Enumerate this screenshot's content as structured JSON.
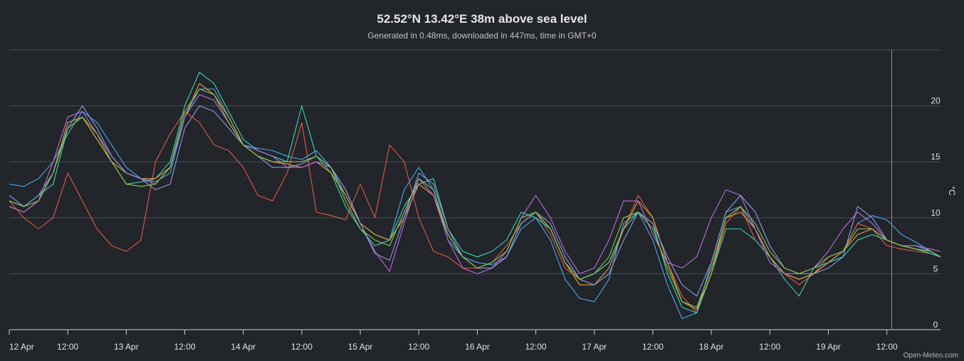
{
  "chart_data": {
    "type": "line",
    "title": "52.52°N 13.42°E 38m above sea level",
    "subtitle": "Generated in 0.48ms, downloaded in 447ms, time in GMT+0",
    "ylabel": "°C",
    "credit": "Open-Meteo.com",
    "ylim": [
      0,
      25
    ],
    "yticks": [
      0,
      5,
      10,
      15,
      20
    ],
    "xlim": [
      0,
      191
    ],
    "x_tick_hours": [
      0,
      12,
      24,
      36,
      48,
      60,
      72,
      84,
      96,
      108,
      120,
      132,
      144,
      156,
      168,
      180
    ],
    "x_tick_labels": [
      "12 Apr",
      "12:00",
      "13 Apr",
      "12:00",
      "14 Apr",
      "12:00",
      "15 Apr",
      "12:00",
      "16 Apr",
      "12:00",
      "17 Apr",
      "12:00",
      "18 Apr",
      "12:00",
      "19 Apr",
      "12:00"
    ],
    "current_time_hour": 181,
    "series": [
      {
        "color": "#4aa8ec",
        "x": [
          0,
          3,
          6,
          9,
          12,
          15,
          18,
          21,
          24,
          27,
          30,
          33,
          36,
          39,
          42,
          45,
          48,
          51,
          54,
          57,
          60,
          63,
          66,
          69,
          72,
          75,
          78,
          81,
          84,
          87,
          90,
          93,
          96,
          99,
          102,
          105,
          108,
          111,
          114,
          117,
          120,
          123,
          126,
          129,
          132,
          135,
          138,
          141,
          144,
          147,
          150,
          153,
          156,
          159,
          162,
          165,
          168,
          171,
          174,
          177,
          180,
          183,
          186,
          189,
          191
        ],
        "y": [
          13.0,
          12.8,
          13.5,
          15.0,
          17.5,
          19.5,
          18.5,
          16.5,
          14.5,
          13.5,
          13.2,
          14.0,
          19.0,
          21.5,
          21.5,
          19.0,
          16.5,
          16.2,
          16.0,
          15.5,
          15.2,
          16.0,
          14.5,
          12.0,
          9.5,
          8.5,
          8.0,
          12.5,
          14.5,
          12.5,
          8.0,
          6.5,
          6.0,
          5.8,
          6.5,
          9.0,
          10.0,
          8.0,
          4.5,
          2.8,
          2.5,
          4.5,
          9.5,
          10.5,
          8.0,
          4.0,
          1.0,
          1.5,
          6.0,
          10.5,
          11.0,
          9.0,
          6.5,
          5.0,
          4.5,
          5.0,
          6.0,
          7.0,
          9.5,
          10.2,
          9.8,
          8.5,
          7.8,
          7.0,
          6.5
        ]
      },
      {
        "color": "#e05a47",
        "x": [
          0,
          3,
          6,
          9,
          12,
          15,
          18,
          21,
          24,
          27,
          30,
          33,
          36,
          39,
          42,
          45,
          48,
          51,
          54,
          57,
          60,
          63,
          66,
          69,
          72,
          75,
          78,
          81,
          84,
          87,
          90,
          93,
          96,
          99,
          102,
          105,
          108,
          111,
          114,
          117,
          120,
          123,
          126,
          129,
          132,
          135,
          138,
          141,
          144,
          147,
          150,
          153,
          156,
          159,
          162,
          165,
          168,
          171,
          174,
          177,
          180,
          183,
          186,
          189,
          191
        ],
        "y": [
          11.5,
          10.0,
          9.0,
          10.0,
          14.0,
          11.5,
          9.0,
          7.5,
          7.0,
          8.0,
          15.0,
          17.5,
          19.5,
          18.5,
          16.5,
          16.0,
          14.5,
          12.0,
          11.5,
          14.0,
          18.5,
          10.5,
          10.2,
          9.8,
          13.0,
          10.0,
          16.5,
          15.0,
          10.0,
          7.0,
          6.5,
          5.5,
          5.5,
          6.0,
          7.5,
          9.5,
          10.5,
          8.5,
          5.5,
          4.5,
          5.0,
          6.0,
          9.0,
          12.0,
          10.0,
          6.0,
          3.0,
          1.5,
          5.0,
          9.5,
          11.0,
          8.0,
          6.5,
          5.0,
          4.0,
          5.0,
          6.5,
          7.0,
          9.5,
          9.0,
          7.5,
          7.2,
          7.0,
          6.8,
          6.5
        ]
      },
      {
        "color": "#34d8b8",
        "x": [
          0,
          3,
          6,
          9,
          12,
          15,
          18,
          21,
          24,
          27,
          30,
          33,
          36,
          39,
          42,
          45,
          48,
          51,
          54,
          57,
          60,
          63,
          66,
          69,
          72,
          75,
          78,
          81,
          84,
          87,
          90,
          93,
          96,
          99,
          102,
          105,
          108,
          111,
          114,
          117,
          120,
          123,
          126,
          129,
          132,
          135,
          138,
          141,
          144,
          147,
          150,
          153,
          156,
          159,
          162,
          165,
          168,
          171,
          174,
          177,
          180,
          183,
          186,
          189,
          191
        ],
        "y": [
          11.5,
          11.0,
          12.0,
          13.0,
          18.0,
          19.0,
          17.0,
          15.0,
          13.0,
          13.2,
          13.5,
          15.0,
          20.0,
          23.0,
          22.0,
          19.5,
          17.0,
          16.0,
          15.5,
          15.0,
          20.0,
          15.5,
          14.0,
          11.0,
          9.0,
          7.5,
          8.0,
          11.0,
          13.0,
          13.5,
          9.0,
          7.0,
          6.5,
          7.0,
          8.0,
          10.5,
          10.0,
          9.0,
          6.0,
          4.5,
          5.0,
          6.0,
          9.0,
          10.5,
          9.5,
          5.0,
          2.0,
          1.5,
          5.0,
          9.0,
          9.0,
          8.0,
          6.5,
          4.5,
          3.0,
          5.5,
          6.0,
          6.5,
          8.0,
          8.5,
          8.0,
          7.5,
          7.2,
          6.8,
          6.5
        ]
      },
      {
        "color": "#e8a13a",
        "x": [
          0,
          3,
          6,
          9,
          12,
          15,
          18,
          21,
          24,
          27,
          30,
          33,
          36,
          39,
          42,
          45,
          48,
          51,
          54,
          57,
          60,
          63,
          66,
          69,
          72,
          75,
          78,
          81,
          84,
          87,
          90,
          93,
          96,
          99,
          102,
          105,
          108,
          111,
          114,
          117,
          120,
          123,
          126,
          129,
          132,
          135,
          138,
          141,
          144,
          147,
          150,
          153,
          156,
          159,
          162,
          165,
          168,
          171,
          174,
          177,
          180,
          183,
          186,
          189,
          191
        ],
        "y": [
          11.0,
          10.5,
          11.5,
          14.0,
          18.5,
          19.0,
          17.0,
          15.0,
          14.0,
          13.5,
          13.5,
          14.5,
          19.0,
          22.0,
          21.0,
          19.0,
          16.5,
          15.5,
          15.0,
          14.8,
          14.5,
          15.0,
          14.0,
          12.0,
          9.5,
          8.5,
          8.0,
          10.0,
          13.0,
          12.0,
          8.5,
          6.5,
          5.5,
          5.5,
          6.5,
          9.5,
          10.5,
          9.0,
          6.0,
          4.0,
          4.0,
          5.5,
          9.0,
          11.5,
          10.0,
          6.0,
          2.5,
          1.8,
          5.0,
          10.0,
          10.5,
          9.0,
          6.5,
          5.0,
          4.5,
          5.0,
          6.0,
          7.0,
          8.5,
          9.0,
          8.0,
          7.5,
          7.2,
          7.0,
          6.5
        ]
      },
      {
        "color": "#bf6be0",
        "x": [
          0,
          3,
          6,
          9,
          12,
          15,
          18,
          21,
          24,
          27,
          30,
          33,
          36,
          39,
          42,
          45,
          48,
          51,
          54,
          57,
          60,
          63,
          66,
          69,
          72,
          75,
          78,
          81,
          84,
          87,
          90,
          93,
          96,
          99,
          102,
          105,
          108,
          111,
          114,
          117,
          120,
          123,
          126,
          129,
          132,
          135,
          138,
          141,
          144,
          147,
          150,
          153,
          156,
          159,
          162,
          165,
          168,
          171,
          174,
          177,
          180,
          183,
          186,
          189,
          191
        ],
        "y": [
          11.0,
          10.5,
          11.5,
          15.0,
          19.0,
          19.5,
          17.5,
          15.5,
          14.0,
          13.5,
          13.0,
          14.5,
          19.0,
          21.0,
          20.5,
          18.5,
          16.5,
          16.0,
          15.5,
          14.5,
          14.5,
          15.0,
          14.5,
          12.5,
          9.5,
          7.0,
          5.2,
          9.5,
          13.5,
          12.0,
          8.0,
          5.5,
          5.0,
          5.5,
          7.0,
          10.0,
          12.0,
          10.0,
          7.0,
          5.0,
          5.5,
          8.0,
          11.5,
          11.5,
          8.5,
          6.0,
          5.5,
          6.5,
          10.0,
          12.5,
          12.0,
          9.0,
          6.0,
          5.0,
          5.0,
          5.5,
          7.0,
          9.0,
          10.5,
          9.5,
          8.0,
          7.5,
          7.5,
          7.2,
          7.0
        ]
      },
      {
        "color": "#8a9de8",
        "x": [
          0,
          3,
          6,
          9,
          12,
          15,
          18,
          21,
          24,
          27,
          30,
          33,
          36,
          39,
          42,
          45,
          48,
          51,
          54,
          57,
          60,
          63,
          66,
          69,
          72,
          75,
          78,
          81,
          84,
          87,
          90,
          93,
          96,
          99,
          102,
          105,
          108,
          111,
          114,
          117,
          120,
          123,
          126,
          129,
          132,
          135,
          138,
          141,
          144,
          147,
          150,
          153,
          156,
          159,
          162,
          165,
          168,
          171,
          174,
          177,
          180,
          183,
          186,
          189,
          191
        ],
        "y": [
          12.0,
          11.0,
          12.0,
          14.0,
          18.0,
          20.0,
          18.0,
          15.5,
          14.0,
          13.5,
          12.5,
          13.0,
          18.0,
          20.0,
          19.5,
          18.0,
          16.5,
          15.5,
          14.5,
          14.5,
          14.8,
          15.5,
          14.5,
          12.5,
          9.5,
          6.8,
          6.2,
          10.0,
          14.0,
          13.0,
          9.0,
          6.5,
          5.5,
          5.5,
          6.5,
          9.5,
          10.5,
          9.5,
          6.5,
          4.5,
          4.0,
          5.0,
          8.0,
          10.5,
          9.5,
          6.5,
          4.0,
          3.0,
          6.0,
          10.5,
          12.0,
          10.5,
          7.5,
          5.5,
          5.0,
          5.0,
          5.5,
          6.5,
          11.0,
          10.0,
          8.0,
          7.5,
          7.5,
          7.0,
          6.5
        ]
      },
      {
        "color": "#88c94a",
        "x": [
          0,
          3,
          6,
          9,
          12,
          15,
          18,
          21,
          24,
          27,
          30,
          33,
          36,
          39,
          42,
          45,
          48,
          51,
          54,
          57,
          60,
          63,
          66,
          69,
          72,
          75,
          78,
          81,
          84,
          87,
          90,
          93,
          96,
          99,
          102,
          105,
          108,
          111,
          114,
          117,
          120,
          123,
          126,
          129,
          132,
          135,
          138,
          141,
          144,
          147,
          150,
          153,
          156,
          159,
          162,
          165,
          168,
          171,
          174,
          177,
          180,
          183,
          186,
          189,
          191
        ],
        "y": [
          11.5,
          11.0,
          11.5,
          14.0,
          18.0,
          19.0,
          17.5,
          15.0,
          13.0,
          12.8,
          13.0,
          14.5,
          19.5,
          21.5,
          21.0,
          18.5,
          16.5,
          15.5,
          15.0,
          15.0,
          15.0,
          15.5,
          14.5,
          11.5,
          9.0,
          8.0,
          7.5,
          10.5,
          13.5,
          12.5,
          8.5,
          6.5,
          5.5,
          6.0,
          7.0,
          10.0,
          10.5,
          9.0,
          6.0,
          4.5,
          5.0,
          6.5,
          10.0,
          10.5,
          9.0,
          5.5,
          2.5,
          2.0,
          5.5,
          10.0,
          11.0,
          9.5,
          7.0,
          5.5,
          5.0,
          5.5,
          6.5,
          7.0,
          9.0,
          9.0,
          8.0,
          7.5,
          7.2,
          7.0,
          6.5
        ]
      }
    ]
  }
}
